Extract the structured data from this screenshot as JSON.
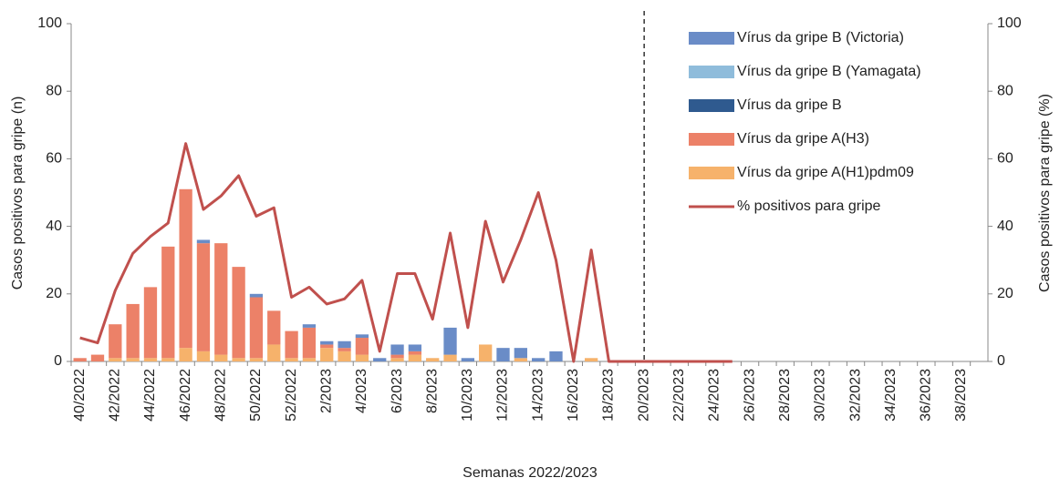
{
  "chart_data": {
    "type": "bar-line",
    "x_label": "Semanas 2022/2023",
    "y_label": "Casos positivos para gripe (n)",
    "y2_label": "Casos positivos para gripe (%)",
    "categories": [
      "40/2022",
      null,
      "42/2022",
      null,
      "44/2022",
      null,
      "46/2022",
      null,
      "48/2022",
      null,
      "50/2022",
      null,
      "52/2022",
      null,
      "2/2023",
      null,
      "4/2023",
      null,
      "6/2023",
      null,
      "8/2023",
      null,
      "10/2023",
      null,
      "12/2023",
      null,
      "14/2023",
      null,
      "16/2023",
      null,
      "18/2023",
      null,
      "20/2023",
      null,
      "22/2023",
      null,
      "24/2023",
      null,
      "26/2023",
      null,
      "28/2023",
      null,
      "30/2023",
      null,
      "32/2023",
      null,
      "34/2023",
      null,
      "36/2023",
      null,
      "38/2023",
      null
    ],
    "vline": "20/2023",
    "ylim": [
      0,
      100
    ],
    "yticks": [
      0,
      20,
      40,
      60,
      80,
      100
    ],
    "y2lim": [
      0,
      100
    ],
    "y2ticks": [
      0,
      20,
      40,
      60,
      80,
      100
    ],
    "series": [
      {
        "name": "Vírus da gripe B (Victoria)",
        "type": "bar",
        "color": "#6a8cc7",
        "values": [
          0,
          0,
          0,
          0,
          0,
          0,
          0,
          1,
          0,
          0,
          1,
          0,
          0,
          1,
          1,
          2,
          1,
          1,
          3,
          2,
          0,
          8,
          1,
          0,
          4,
          3,
          1,
          3,
          0,
          0,
          0,
          0,
          0,
          0,
          0,
          0,
          0,
          0,
          0,
          0,
          0,
          0,
          0,
          0,
          0,
          0,
          0,
          0,
          0,
          0,
          0,
          0
        ]
      },
      {
        "name": "Vírus da gripe B (Yamagata)",
        "type": "bar",
        "color": "#8fbcdb",
        "values": [
          0,
          0,
          0,
          0,
          0,
          0,
          0,
          0,
          0,
          0,
          0,
          0,
          0,
          0,
          0,
          0,
          0,
          0,
          0,
          0,
          0,
          0,
          0,
          0,
          0,
          0,
          0,
          0,
          0,
          0,
          0,
          0,
          0,
          0,
          0,
          0,
          0,
          0,
          0,
          0,
          0,
          0,
          0,
          0,
          0,
          0,
          0,
          0,
          0,
          0,
          0,
          0
        ]
      },
      {
        "name": "Vírus da gripe B",
        "type": "bar",
        "color": "#2f5a8f",
        "values": [
          0,
          0,
          0,
          0,
          0,
          0,
          0,
          0,
          0,
          0,
          0,
          0,
          0,
          0,
          0,
          0,
          0,
          0,
          0,
          0,
          0,
          0,
          0,
          0,
          0,
          0,
          0,
          0,
          0,
          0,
          0,
          0,
          0,
          0,
          0,
          0,
          0,
          0,
          0,
          0,
          0,
          0,
          0,
          0,
          0,
          0,
          0,
          0,
          0,
          0,
          0,
          0
        ]
      },
      {
        "name": "Vírus da gripe A(H3)",
        "type": "bar",
        "color": "#ec8168",
        "values": [
          1,
          2,
          10,
          16,
          21,
          33,
          47,
          32,
          33,
          27,
          18,
          10,
          8,
          9,
          1,
          1,
          5,
          0,
          1,
          1,
          0,
          0,
          0,
          0,
          0,
          0,
          0,
          0,
          0,
          0,
          0,
          0,
          0,
          0,
          0,
          0,
          0,
          0,
          0,
          0,
          0,
          0,
          0,
          0,
          0,
          0,
          0,
          0,
          0,
          0,
          0,
          0
        ]
      },
      {
        "name": "Vírus da gripe A(H1)pdm09",
        "type": "bar",
        "color": "#f6b26b",
        "values": [
          0,
          0,
          1,
          1,
          1,
          1,
          4,
          3,
          2,
          1,
          1,
          5,
          1,
          1,
          4,
          3,
          2,
          0,
          1,
          2,
          1,
          2,
          0,
          5,
          0,
          1,
          0,
          0,
          0,
          1,
          0,
          0,
          0,
          0,
          0,
          0,
          0,
          0,
          0,
          0,
          0,
          0,
          0,
          0,
          0,
          0,
          0,
          0,
          0,
          0,
          0,
          0
        ]
      },
      {
        "name": "% positivos para gripe",
        "type": "line",
        "axis": "y2",
        "color": "#c0504d",
        "values": [
          7,
          5.5,
          21,
          32,
          37,
          41,
          64.5,
          45,
          49,
          55,
          43,
          45.5,
          19,
          22,
          17,
          18.5,
          24,
          3,
          26,
          26,
          12.5,
          38,
          10,
          41.5,
          23.5,
          36,
          50,
          30,
          0,
          33,
          0,
          0,
          0,
          0,
          0,
          0,
          0,
          0,
          null,
          null,
          null,
          null,
          null,
          null,
          null,
          null,
          null,
          null,
          null,
          null,
          null,
          null
        ]
      }
    ]
  }
}
